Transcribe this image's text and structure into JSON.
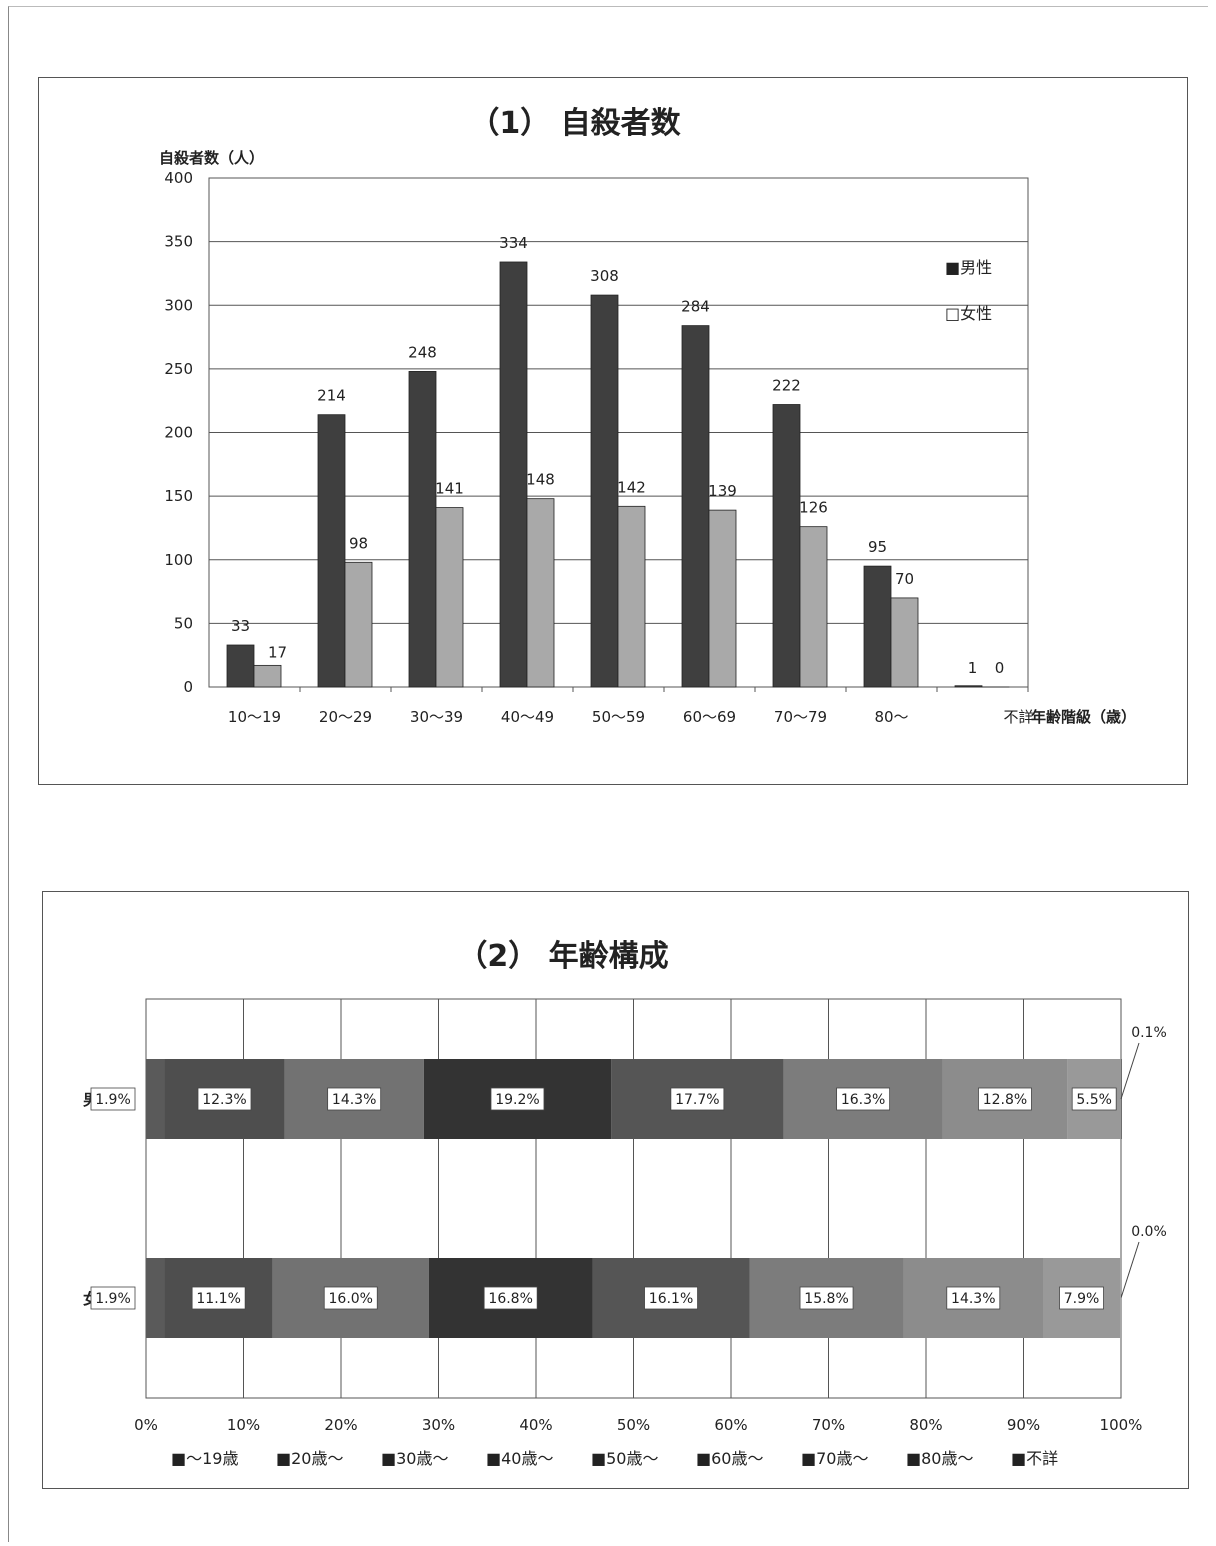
{
  "chart_data": [
    {
      "type": "bar",
      "title": "（1） 自殺者数",
      "ylabel": "自殺者数（人）",
      "xlabel": "年齢階級（歳）",
      "ylim": [
        0,
        400
      ],
      "yticks": [
        0,
        50,
        100,
        150,
        200,
        250,
        300,
        350,
        400
      ],
      "categories": [
        "10～19",
        "20～29",
        "30～39",
        "40～49",
        "50～59",
        "60～69",
        "70～79",
        "80～",
        "不詳"
      ],
      "series": [
        {
          "name": "男性",
          "legend": "■男性",
          "values": [
            33,
            214,
            248,
            334,
            308,
            284,
            222,
            95,
            1
          ],
          "color": "#3f3f3f"
        },
        {
          "name": "女性",
          "legend": "□女性",
          "values": [
            17,
            98,
            141,
            148,
            142,
            139,
            126,
            70,
            0
          ],
          "color": "#a9a9a9"
        }
      ],
      "grid": true,
      "legend_position": "right"
    },
    {
      "type": "bar",
      "orientation": "horizontal-stacked-100",
      "title": "（2） 年齢構成",
      "categories": [
        "男性",
        "女性"
      ],
      "xticks": [
        "0%",
        "10%",
        "20%",
        "30%",
        "40%",
        "50%",
        "60%",
        "70%",
        "80%",
        "90%",
        "100%"
      ],
      "series": [
        {
          "name": "～19歳",
          "legend": "■～19歳",
          "values": [
            1.9,
            1.9
          ],
          "labels": [
            "1.9%",
            "1.9%"
          ],
          "color": "#5a5a5a"
        },
        {
          "name": "20歳～",
          "legend": "■20歳～",
          "values": [
            12.3,
            11.1
          ],
          "labels": [
            "12.3%",
            "11.1%"
          ],
          "color": "#4e4e4e"
        },
        {
          "name": "30歳～",
          "legend": "■30歳～",
          "values": [
            14.3,
            16.0
          ],
          "labels": [
            "14.3%",
            "16.0%"
          ],
          "color": "#727272"
        },
        {
          "name": "40歳～",
          "legend": "■40歳～",
          "values": [
            19.2,
            16.8
          ],
          "labels": [
            "19.2%",
            "16.8%"
          ],
          "color": "#333333"
        },
        {
          "name": "50歳～",
          "legend": "■50歳～",
          "values": [
            17.7,
            16.1
          ],
          "labels": [
            "17.7%",
            "16.1%"
          ],
          "color": "#555555"
        },
        {
          "name": "60歳～",
          "legend": "■60歳～",
          "values": [
            16.3,
            15.8
          ],
          "labels": [
            "16.3%",
            "15.8%"
          ],
          "color": "#7c7c7c"
        },
        {
          "name": "70歳～",
          "legend": "■70歳～",
          "values": [
            12.8,
            14.3
          ],
          "labels": [
            "12.8%",
            "14.3%"
          ],
          "color": "#8c8c8c"
        },
        {
          "name": "80歳～",
          "legend": "■80歳～",
          "values": [
            5.5,
            7.9
          ],
          "labels": [
            "5.5%",
            "7.9%"
          ],
          "color": "#999999"
        },
        {
          "name": "不詳",
          "legend": "■不詳",
          "values": [
            0.1,
            0.0
          ],
          "labels": [
            "0.1%",
            "0.0%"
          ],
          "color": "#6a6a6a"
        }
      ],
      "grid": true,
      "legend_position": "bottom"
    }
  ]
}
